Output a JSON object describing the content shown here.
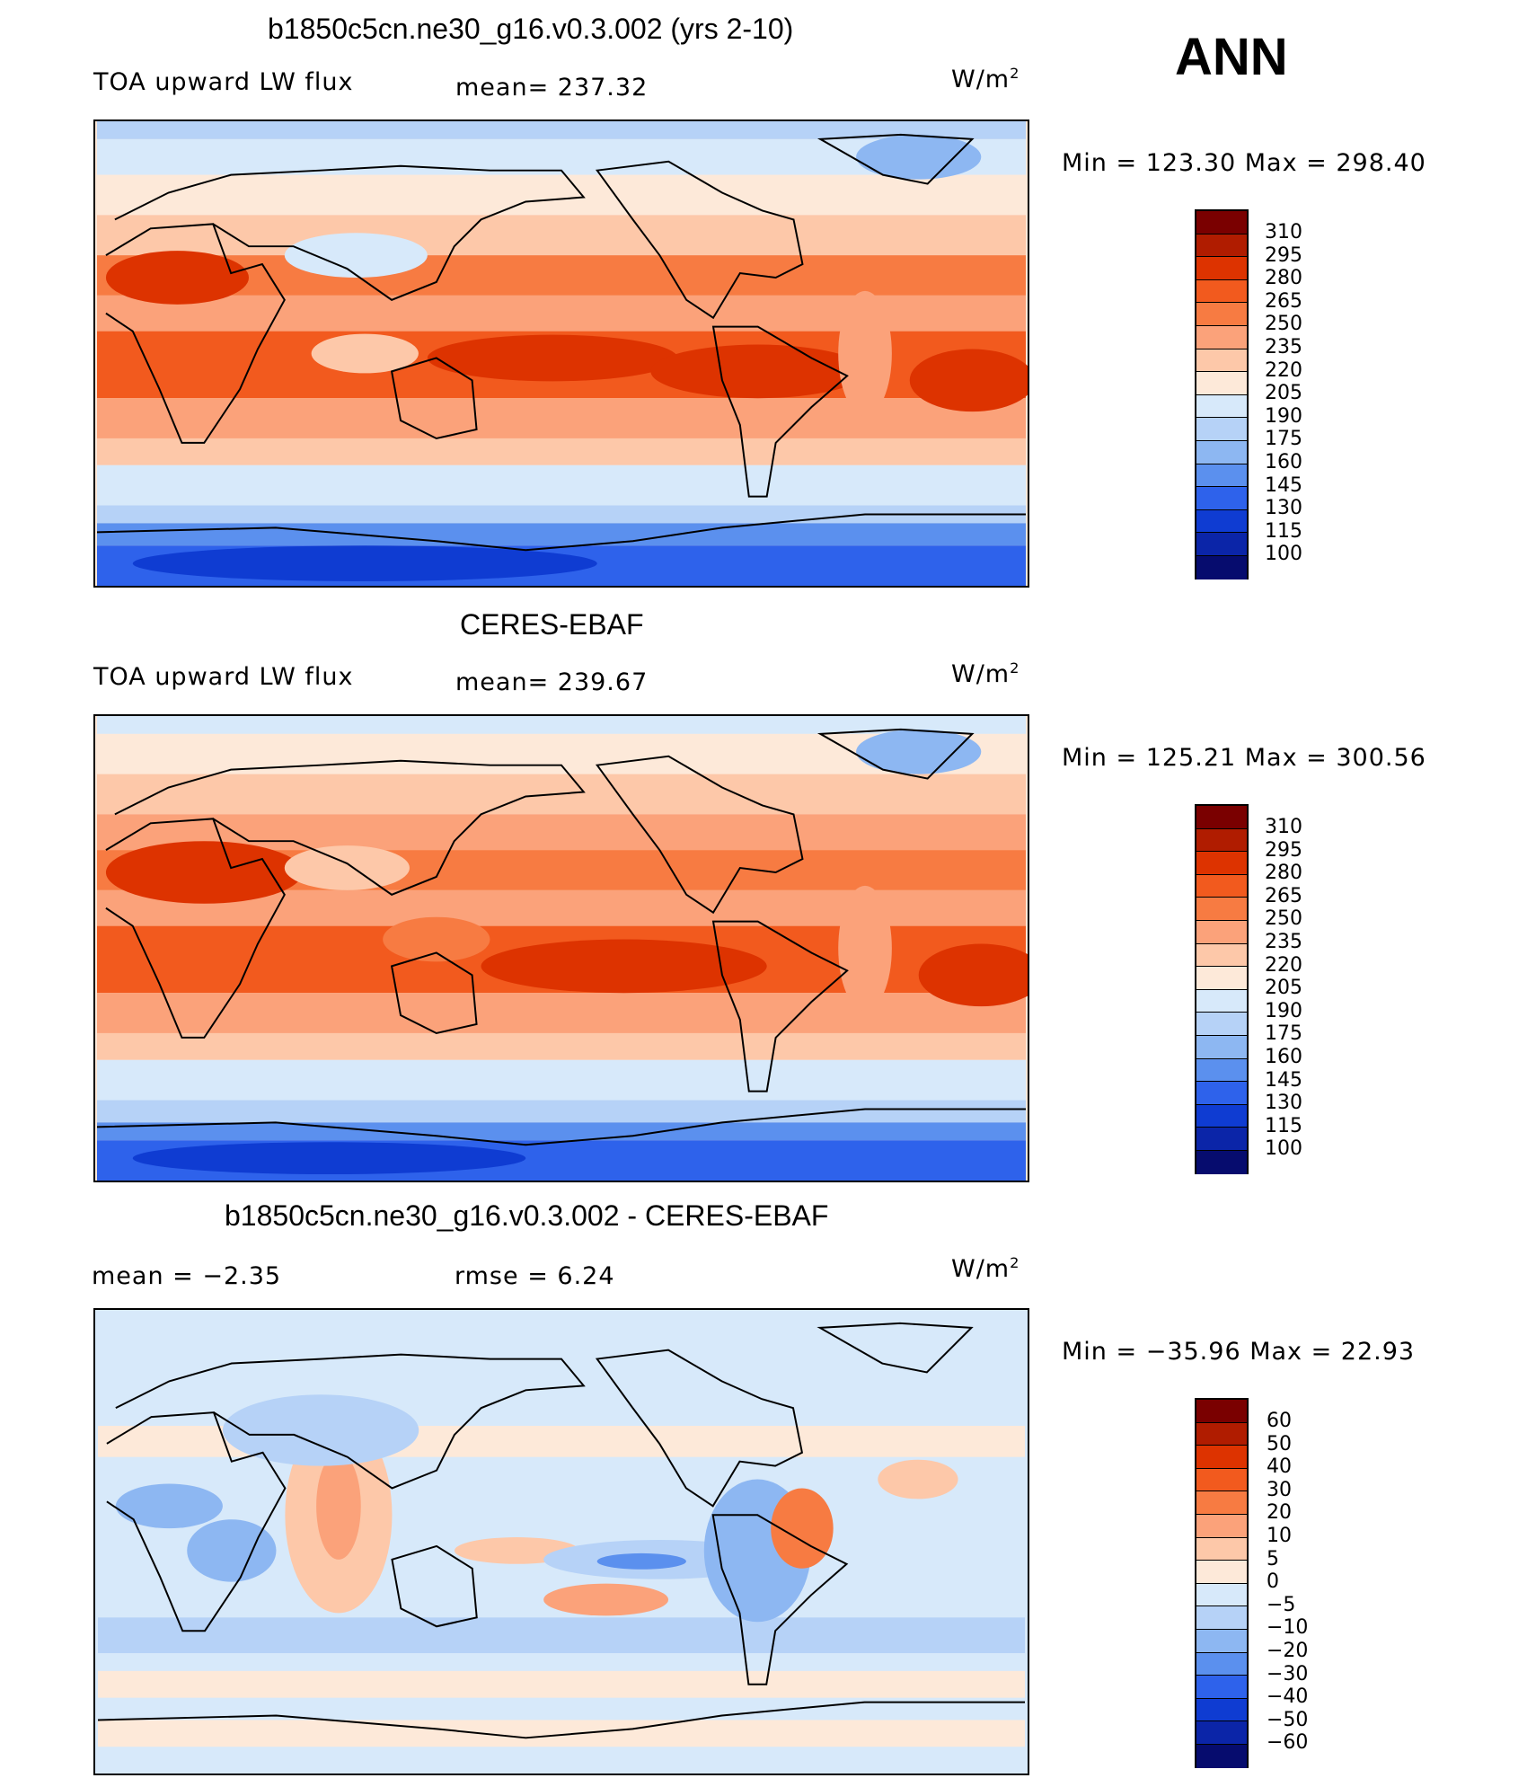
{
  "season": "ANN",
  "panels": [
    {
      "title": "b1850c5cn.ne30_g16.v0.3.002 (yrs 2-10)",
      "left_label": "TOA upward LW flux",
      "center_label": "mean= 237.32",
      "units": "W/m",
      "units_sup": "2",
      "minmax": "Min  =  123.30  Max  =  298.40",
      "colorbar": {
        "labels": [
          "310",
          "295",
          "280",
          "265",
          "250",
          "235",
          "220",
          "205",
          "190",
          "175",
          "160",
          "145",
          "130",
          "115",
          "100"
        ],
        "colors": [
          "#7a0000",
          "#b01c00",
          "#dd3300",
          "#f25a1e",
          "#f77b42",
          "#fba27a",
          "#fdc8a9",
          "#fde9d9",
          "#d7e9fa",
          "#b6d2f7",
          "#8db7f2",
          "#5b90ee",
          "#2e62eb",
          "#0f3cd2",
          "#0b25a8",
          "#060c6e"
        ]
      }
    },
    {
      "title": "CERES-EBAF",
      "left_label": "TOA upward LW flux",
      "center_label": "mean= 239.67",
      "units": "W/m",
      "units_sup": "2",
      "minmax": "Min  =  125.21  Max  =  300.56",
      "colorbar": {
        "labels": [
          "310",
          "295",
          "280",
          "265",
          "250",
          "235",
          "220",
          "205",
          "190",
          "175",
          "160",
          "145",
          "130",
          "115",
          "100"
        ],
        "colors": [
          "#7a0000",
          "#b01c00",
          "#dd3300",
          "#f25a1e",
          "#f77b42",
          "#fba27a",
          "#fdc8a9",
          "#fde9d9",
          "#d7e9fa",
          "#b6d2f7",
          "#8db7f2",
          "#5b90ee",
          "#2e62eb",
          "#0f3cd2",
          "#0b25a8",
          "#060c6e"
        ]
      }
    },
    {
      "title": "b1850c5cn.ne30_g16.v0.3.002 - CERES-EBAF",
      "left_label": "mean  =    −2.35",
      "center_label": "rmse  =     6.24",
      "units": "W/m",
      "units_sup": "2",
      "minmax": "Min  =  −35.96  Max  =    22.93",
      "colorbar": {
        "labels": [
          "60",
          "50",
          "40",
          "30",
          "20",
          "10",
          "5",
          "0",
          "−5",
          "−10",
          "−20",
          "−30",
          "−40",
          "−50",
          "−60"
        ],
        "colors": [
          "#7a0000",
          "#b01c00",
          "#dd3300",
          "#f25a1e",
          "#f77b42",
          "#fba27a",
          "#fdc8a9",
          "#fde9d9",
          "#d7e9fa",
          "#b6d2f7",
          "#8db7f2",
          "#5b90ee",
          "#2e62eb",
          "#0f3cd2",
          "#0b25a8",
          "#060c6e"
        ]
      }
    }
  ]
}
